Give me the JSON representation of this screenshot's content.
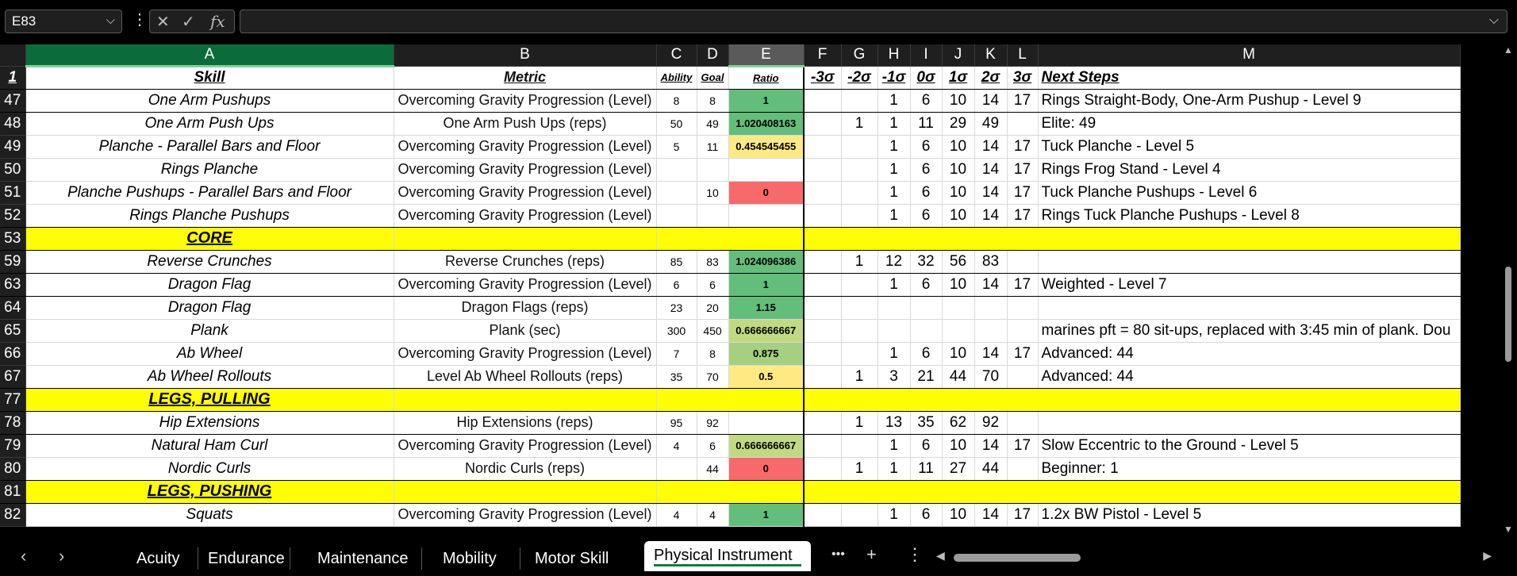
{
  "namebox": {
    "value": "E83"
  },
  "formula_bar": {
    "value": ""
  },
  "icons": {
    "cancel": "✕",
    "enter": "✓",
    "fx": "fx"
  },
  "columns": [
    "A",
    "B",
    "C",
    "D",
    "E",
    "F",
    "G",
    "H",
    "I",
    "J",
    "K",
    "L",
    "M"
  ],
  "header_row": {
    "row": "1",
    "skill": "Skill",
    "metric": "Metric",
    "ability": "Ability",
    "goal": "Goal",
    "ratio": "Ratio",
    "sigmas": [
      "-3σ",
      "-2σ",
      "-1σ",
      "0σ",
      "1σ",
      "2σ",
      "3σ"
    ],
    "next": "Next Steps"
  },
  "rows": [
    {
      "row": "47",
      "skill": "One Arm Pushups",
      "metric": "Overcoming Gravity Progression (Level)",
      "ability": "8",
      "goal": "8",
      "ratio": "1",
      "s": [
        "",
        "",
        "1",
        "6",
        "10",
        "14",
        "17"
      ],
      "next": "Rings Straight-Body, One-Arm Pushup - Level 9",
      "color": "#63be7b"
    },
    {
      "row": "48",
      "skill": "One Arm Push Ups",
      "metric": "One Arm Push Ups (reps)",
      "ability": "50",
      "goal": "49",
      "ratio": "1.020408163",
      "s": [
        "",
        "1",
        "1",
        "11",
        "29",
        "49",
        ""
      ],
      "next": "Elite: 49",
      "color": "#63be7b"
    },
    {
      "row": "49",
      "skill": "Planche - Parallel Bars and Floor",
      "metric": "Overcoming Gravity Progression (Level)",
      "ability": "5",
      "goal": "11",
      "ratio": "0.454545455",
      "s": [
        "",
        "",
        "1",
        "6",
        "10",
        "14",
        "17"
      ],
      "next": "Tuck Planche - Level 5",
      "color": "#fee983"
    },
    {
      "row": "50",
      "skill": "Rings Planche",
      "metric": "Overcoming Gravity Progression (Level)",
      "ability": "",
      "goal": "",
      "ratio": "",
      "s": [
        "",
        "",
        "1",
        "6",
        "10",
        "14",
        "17"
      ],
      "next": "Rings Frog Stand - Level 4",
      "color": ""
    },
    {
      "row": "51",
      "skill": "Planche Pushups - Parallel Bars and Floor",
      "metric": "Overcoming Gravity Progression (Level)",
      "ability": "",
      "goal": "10",
      "ratio": "0",
      "s": [
        "",
        "",
        "1",
        "6",
        "10",
        "14",
        "17"
      ],
      "next": "Tuck Planche Pushups - Level 6",
      "color": "#f8696b"
    },
    {
      "row": "52",
      "skill": "Rings Planche Pushups",
      "metric": "Overcoming Gravity Progression (Level)",
      "ability": "",
      "goal": "",
      "ratio": "",
      "s": [
        "",
        "",
        "1",
        "6",
        "10",
        "14",
        "17"
      ],
      "next": "Rings Tuck Planche Pushups - Level 8",
      "color": ""
    },
    {
      "row": "53",
      "section": "CORE"
    },
    {
      "row": "59",
      "skill": "Reverse Crunches",
      "metric": "Reverse Crunches (reps)",
      "ability": "85",
      "goal": "83",
      "ratio": "1.024096386",
      "s": [
        "",
        "1",
        "12",
        "32",
        "56",
        "83",
        ""
      ],
      "next": "",
      "color": "#63be7b"
    },
    {
      "row": "63",
      "skill": "Dragon Flag",
      "metric": "Overcoming Gravity Progression (Level)",
      "ability": "6",
      "goal": "6",
      "ratio": "1",
      "s": [
        "",
        "",
        "1",
        "6",
        "10",
        "14",
        "17"
      ],
      "next": "Weighted  - Level 7",
      "color": "#63be7b"
    },
    {
      "row": "64",
      "skill": "Dragon Flag",
      "metric": "Dragon Flags (reps)",
      "ability": "23",
      "goal": "20",
      "ratio": "1.15",
      "s": [
        "",
        "",
        "",
        "",
        "",
        "",
        ""
      ],
      "next": "",
      "color": "#63be7b"
    },
    {
      "row": "65",
      "skill": "Plank",
      "metric": "Plank (sec)",
      "ability": "300",
      "goal": "450",
      "ratio": "0.666666667",
      "s": [
        "",
        "",
        "",
        "",
        "",
        "",
        ""
      ],
      "next": "marines pft = 80 sit-ups, replaced with 3:45 min of plank. Dou",
      "color": "#c1da81"
    },
    {
      "row": "66",
      "skill": "Ab Wheel",
      "metric": "Overcoming Gravity Progression (Level)",
      "ability": "7",
      "goal": "8",
      "ratio": "0.875",
      "s": [
        "",
        "",
        "1",
        "6",
        "10",
        "14",
        "17"
      ],
      "next": "Advanced: 44",
      "color": "#a5d07f"
    },
    {
      "row": "67",
      "skill": "Ab Wheel Rollouts",
      "metric": "Level Ab Wheel Rollouts (reps)",
      "ability": "35",
      "goal": "70",
      "ratio": "0.5",
      "s": [
        "",
        "1",
        "3",
        "21",
        "44",
        "70",
        ""
      ],
      "next": "Advanced: 44",
      "color": "#fee983"
    },
    {
      "row": "77",
      "section": "LEGS, PULLING"
    },
    {
      "row": "78",
      "skill": "Hip Extensions",
      "metric": "Hip Extensions (reps)",
      "ability": "95",
      "goal": "92",
      "ratio": "",
      "s": [
        "",
        "1",
        "13",
        "35",
        "62",
        "92",
        ""
      ],
      "next": "",
      "color": ""
    },
    {
      "row": "79",
      "skill": "Natural Ham Curl",
      "metric": "Overcoming Gravity Progression (Level)",
      "ability": "4",
      "goal": "6",
      "ratio": "0.666666667",
      "s": [
        "",
        "",
        "1",
        "6",
        "10",
        "14",
        "17"
      ],
      "next": "Slow Eccentric to the Ground - Level 5",
      "color": "#c1da81"
    },
    {
      "row": "80",
      "skill": "Nordic Curls",
      "metric": "Nordic Curls (reps)",
      "ability": "",
      "goal": "44",
      "ratio": "0",
      "s": [
        "",
        "1",
        "1",
        "11",
        "27",
        "44",
        ""
      ],
      "next": "Beginner: 1",
      "color": "#f8696b"
    },
    {
      "row": "81",
      "section": "LEGS, PUSHING"
    },
    {
      "row": "82",
      "skill": "Squats",
      "metric": "Overcoming Gravity Progression (Level)",
      "ability": "4",
      "goal": "4",
      "ratio": "1",
      "s": [
        "",
        "",
        "1",
        "6",
        "10",
        "14",
        "17"
      ],
      "next": "1.2x BW Pistol - Level 5",
      "color": "#63be7b"
    }
  ],
  "tabs": [
    "Acuity",
    "Endurance",
    "Maintenance",
    "Mobility",
    "Motor Skill",
    "Physical Instrument"
  ],
  "active_tab": "Physical Instrument",
  "tab_more": "•••",
  "tab_add": "+",
  "tab_options": "⋮"
}
